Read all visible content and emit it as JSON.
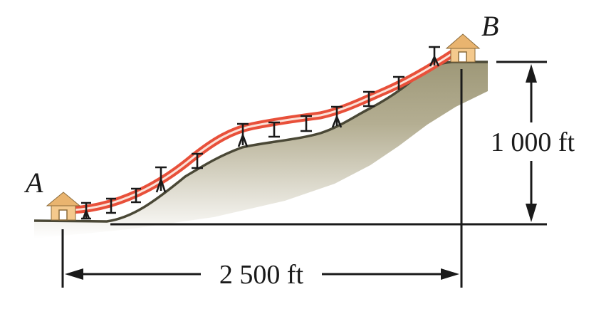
{
  "labels": {
    "point_a": "A",
    "point_b": "B",
    "horizontal_distance": "2 500 ft",
    "vertical_height": "1 000 ft"
  },
  "colors": {
    "cable": "#e8503a",
    "cable_core": "#fbe2d8",
    "ground": "#a9a385",
    "house_wall": "#f4c98d",
    "house_roof": "#e9b46f",
    "ink": "#1a1a1a"
  },
  "icons": [
    "house-icon",
    "tower-icon",
    "arrowhead-icon"
  ]
}
